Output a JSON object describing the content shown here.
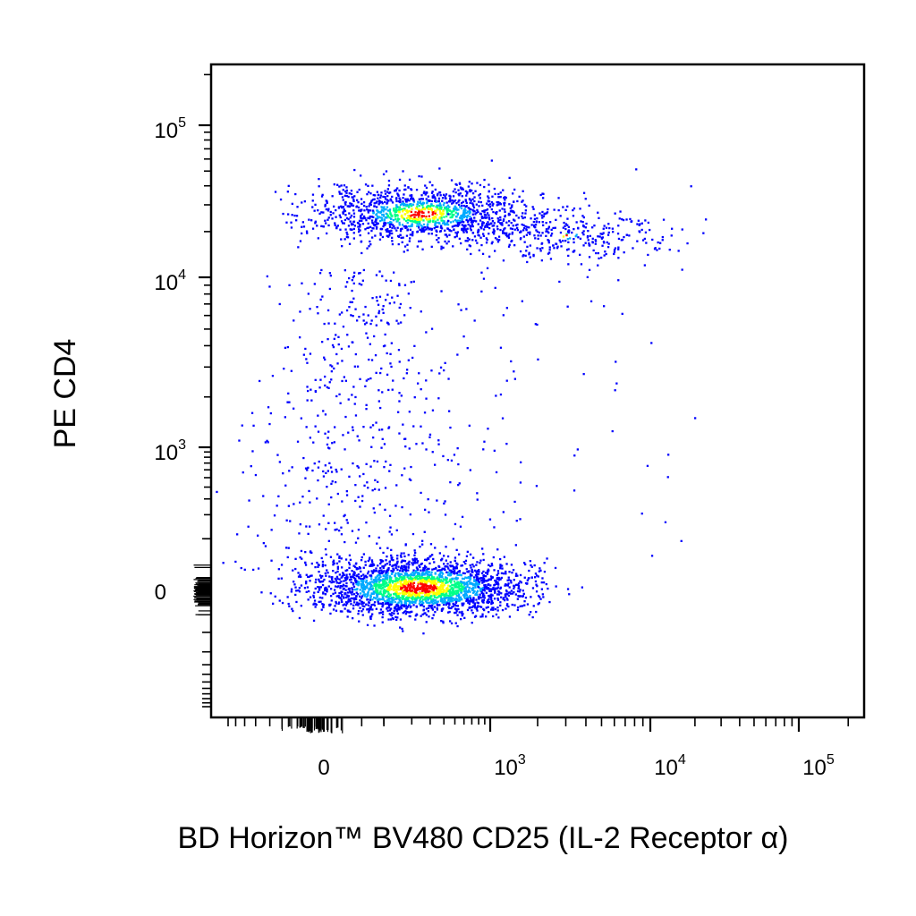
{
  "chart_data": {
    "type": "scatter",
    "subtype": "flow-cytometry-pseudocolor-density",
    "xlabel": "BD Horizon™ BV480 CD25 (IL-2 Receptor α)",
    "ylabel": "PE CD4",
    "x_scale": "biexponential",
    "y_scale": "biexponential",
    "x_ticks": [
      {
        "value": 0,
        "base": "0",
        "exp": ""
      },
      {
        "value": 1000,
        "base": "10",
        "exp": "3"
      },
      {
        "value": 10000,
        "base": "10",
        "exp": "4"
      },
      {
        "value": 100000,
        "base": "10",
        "exp": "5"
      }
    ],
    "y_ticks": [
      {
        "value": 0,
        "base": "0",
        "exp": ""
      },
      {
        "value": 1000,
        "base": "10",
        "exp": "3"
      },
      {
        "value": 10000,
        "base": "10",
        "exp": "4"
      },
      {
        "value": 100000,
        "base": "10",
        "exp": "5"
      }
    ],
    "xlim": [
      -300,
      250000
    ],
    "ylim": [
      -1000,
      230000
    ],
    "grid": false,
    "density_colors": [
      "#0000ff",
      "#00aaff",
      "#00ff88",
      "#ffff00",
      "#ff0000"
    ],
    "populations": [
      {
        "id": "cd4-neg-cd25-neg",
        "x_center": 120,
        "y_center": 0,
        "relative_size": 0.55,
        "peak_density": "red"
      },
      {
        "id": "cd4-pos-cd25-neg",
        "x_center": 130,
        "y_center": 28000,
        "relative_size": 0.3,
        "peak_density": "yellow-green"
      },
      {
        "id": "cd4-pos-cd25-pos",
        "x_center": 3000,
        "y_center": 19000,
        "relative_size": 0.07,
        "peak_density": "blue"
      },
      {
        "id": "transitional",
        "x_center": 180,
        "y_center": 1500,
        "relative_size": 0.08,
        "peak_density": "blue"
      }
    ]
  }
}
